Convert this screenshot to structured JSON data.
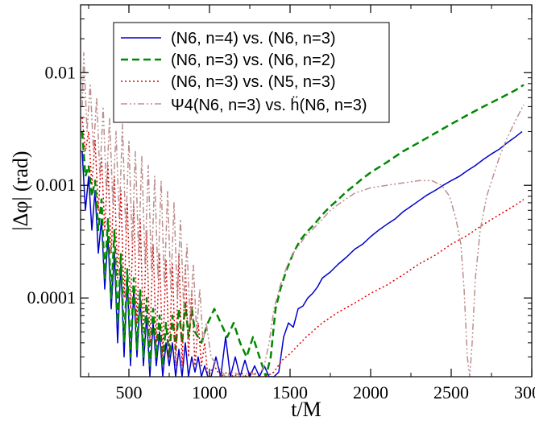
{
  "chart_data": {
    "type": "line",
    "xlabel": "t/M",
    "ylabel": "|Δφ|  (rad)",
    "xlim": [
      200,
      3000
    ],
    "ylim": [
      2e-05,
      0.04
    ],
    "yscale": "log",
    "grid": false,
    "legend_position": "top-center",
    "x_ticks": [
      500,
      1000,
      1500,
      2000,
      2500,
      3000
    ],
    "x_tick_labels": [
      "500",
      "1000",
      "1500",
      "2000",
      "2500",
      "3000"
    ],
    "y_ticks": [
      0.0001,
      0.001,
      0.01
    ],
    "y_tick_labels": [
      "0.0001",
      "0.001",
      "0.01"
    ],
    "series": [
      {
        "name": "(N6, n=4) vs. (N6, n=3)",
        "color": "#0000cc",
        "style": "solid",
        "x": [
          210,
          230,
          250,
          270,
          290,
          310,
          330,
          350,
          370,
          390,
          410,
          430,
          450,
          470,
          490,
          510,
          530,
          550,
          570,
          590,
          610,
          630,
          650,
          670,
          690,
          710,
          730,
          750,
          770,
          790,
          810,
          830,
          850,
          870,
          890,
          910,
          930,
          950,
          970,
          990,
          1010,
          1040,
          1070,
          1100,
          1130,
          1160,
          1190,
          1220,
          1250,
          1280,
          1310,
          1340,
          1370,
          1400,
          1430,
          1460,
          1490,
          1520,
          1550,
          1580,
          1610,
          1640,
          1670,
          1700,
          1750,
          1800,
          1850,
          1900,
          1950,
          2000,
          2050,
          2100,
          2150,
          2200,
          2250,
          2300,
          2350,
          2400,
          2450,
          2500,
          2550,
          2600,
          2650,
          2700,
          2750,
          2800,
          2850,
          2900,
          2940
        ],
        "values": [
          0.002,
          0.0006,
          0.0012,
          0.0004,
          0.0009,
          0.00025,
          0.0005,
          0.00012,
          0.00035,
          8e-05,
          0.00025,
          4e-05,
          0.0002,
          3e-05,
          0.00015,
          2.5e-05,
          0.00012,
          3e-05,
          0.0001,
          2.5e-05,
          7e-05,
          2e-05,
          6e-05,
          2.5e-05,
          5e-05,
          2e-05,
          4e-05,
          2.5e-05,
          4e-05,
          2e-05,
          3.5e-05,
          2e-05,
          4e-05,
          2e-05,
          3e-05,
          2.2e-05,
          3e-05,
          2e-05,
          2.5e-05,
          2e-05,
          2e-05,
          3e-05,
          2e-05,
          4.5e-05,
          2e-05,
          3e-05,
          2e-05,
          2.8e-05,
          2e-05,
          2.5e-05,
          2e-05,
          2.5e-05,
          2e-05,
          2e-05,
          2.2e-05,
          4.5e-05,
          6e-05,
          5.5e-05,
          8e-05,
          8.5e-05,
          0.0001,
          0.00011,
          0.000125,
          0.00015,
          0.00017,
          0.0002,
          0.00023,
          0.00027,
          0.0003,
          0.00035,
          0.0004,
          0.00045,
          0.0005,
          0.00058,
          0.00065,
          0.00073,
          0.00082,
          0.0009,
          0.001,
          0.0011,
          0.0012,
          0.00135,
          0.0015,
          0.0017,
          0.0019,
          0.0021,
          0.0024,
          0.0027,
          0.003
        ]
      },
      {
        "name": "(N6, n=3) vs. (N6, n=2)",
        "color": "#008800",
        "style": "dashed",
        "x": [
          210,
          230,
          250,
          270,
          290,
          310,
          330,
          350,
          370,
          390,
          410,
          430,
          450,
          470,
          490,
          510,
          530,
          550,
          570,
          590,
          610,
          630,
          650,
          670,
          690,
          710,
          730,
          750,
          770,
          790,
          810,
          830,
          850,
          870,
          890,
          910,
          950,
          990,
          1030,
          1070,
          1110,
          1150,
          1190,
          1230,
          1270,
          1310,
          1350,
          1380,
          1410,
          1440,
          1480,
          1520,
          1560,
          1600,
          1650,
          1700,
          1750,
          1800,
          1850,
          1900,
          1950,
          2000,
          2100,
          2200,
          2300,
          2400,
          2500,
          2600,
          2700,
          2800,
          2900,
          2950
        ],
        "values": [
          0.003,
          0.0012,
          0.0015,
          0.0008,
          0.0011,
          0.0004,
          0.00075,
          0.00015,
          0.0005,
          0.0001,
          0.0004,
          6e-05,
          0.00025,
          4e-05,
          0.00018,
          3e-05,
          0.00015,
          3.5e-05,
          0.00012,
          3e-05,
          0.0001,
          2.5e-05,
          8e-05,
          3e-05,
          7e-05,
          2.5e-05,
          6e-05,
          3e-05,
          7e-05,
          3.5e-05,
          8e-05,
          4e-05,
          9e-05,
          4.5e-05,
          8e-05,
          5e-05,
          4e-05,
          6e-05,
          8e-05,
          6e-05,
          4.5e-05,
          6e-05,
          4e-05,
          3e-05,
          4.5e-05,
          3e-05,
          2e-05,
          3e-05,
          8e-05,
          0.00012,
          0.00018,
          0.00025,
          0.00032,
          0.00038,
          0.00045,
          0.00055,
          0.00065,
          0.00075,
          0.00088,
          0.001,
          0.00115,
          0.0013,
          0.0016,
          0.002,
          0.0024,
          0.0029,
          0.0035,
          0.0042,
          0.005,
          0.0059,
          0.007,
          0.0078
        ]
      },
      {
        "name": "(N6, n=3) vs. (N5, n=3)",
        "color": "#dd0000",
        "style": "dotted",
        "x": [
          210,
          230,
          250,
          270,
          290,
          310,
          330,
          350,
          370,
          390,
          410,
          430,
          450,
          470,
          490,
          510,
          530,
          550,
          570,
          590,
          610,
          630,
          650,
          670,
          690,
          710,
          730,
          750,
          770,
          790,
          810,
          830,
          850,
          870,
          890,
          910,
          930,
          950,
          970,
          990,
          1030,
          1070,
          1110,
          1150,
          1190,
          1230,
          1270,
          1310,
          1350,
          1400,
          1450,
          1500,
          1550,
          1600,
          1650,
          1700,
          1800,
          1900,
          2000,
          2100,
          2200,
          2300,
          2400,
          2500,
          2600,
          2700,
          2800,
          2900,
          2950
        ],
        "values": [
          0.004,
          0.002,
          0.003,
          0.001,
          0.0025,
          0.0006,
          0.0018,
          0.0004,
          0.0015,
          0.00025,
          0.0012,
          0.00015,
          0.0009,
          0.0001,
          0.0007,
          8e-05,
          0.00065,
          6e-05,
          0.0005,
          5e-05,
          0.0004,
          4e-05,
          0.0003,
          4e-05,
          0.00025,
          3e-05,
          0.00022,
          3e-05,
          0.0002,
          2.5e-05,
          0.00025,
          2.5e-05,
          0.0002,
          3e-05,
          0.00012,
          2.5e-05,
          6e-05,
          2.5e-05,
          4e-05,
          2e-05,
          2.5e-05,
          2e-05,
          2.2e-05,
          2e-05,
          2.2e-05,
          2e-05,
          2.2e-05,
          2e-05,
          2e-05,
          2.2e-05,
          2.8e-05,
          3.2e-05,
          3.8e-05,
          4.5e-05,
          5.2e-05,
          6e-05,
          7.5e-05,
          9e-05,
          0.00011,
          0.00013,
          0.00016,
          0.0002,
          0.00024,
          0.0003,
          0.00036,
          0.00045,
          0.00055,
          0.00067,
          0.00075
        ]
      },
      {
        "name": "Ψ4(N6, n=3) vs. ḧ(N6, n=3)",
        "color": "#bc8f8f",
        "style": "dash-dot-dot",
        "x": [
          210,
          220,
          240,
          260,
          280,
          300,
          320,
          340,
          360,
          380,
          400,
          420,
          440,
          460,
          480,
          500,
          520,
          540,
          560,
          580,
          600,
          620,
          640,
          660,
          680,
          700,
          720,
          740,
          760,
          780,
          800,
          820,
          840,
          860,
          880,
          900,
          920,
          940,
          960,
          980,
          1010,
          1050,
          1100,
          1150,
          1200,
          1250,
          1300,
          1340,
          1370,
          1400,
          1440,
          1480,
          1520,
          1560,
          1600,
          1650,
          1700,
          1750,
          1800,
          1850,
          1900,
          1950,
          2000,
          2100,
          2200,
          2300,
          2380,
          2440,
          2490,
          2530,
          2560,
          2580,
          2600,
          2615,
          2630,
          2650,
          2680,
          2720,
          2760,
          2800,
          2840,
          2880,
          2920,
          2950
        ],
        "values": [
          0.005,
          0.015,
          0.003,
          0.008,
          0.002,
          0.006,
          0.0012,
          0.005,
          0.0009,
          0.004,
          0.0007,
          0.003,
          0.0005,
          0.0035,
          0.0004,
          0.0025,
          0.0003,
          0.002,
          0.00025,
          0.0018,
          0.0002,
          0.0015,
          0.00018,
          0.0012,
          0.00015,
          0.0011,
          0.00013,
          0.0009,
          0.00012,
          0.0007,
          0.0001,
          0.0005,
          8e-05,
          0.0003,
          6e-05,
          0.0002,
          5e-05,
          0.00012,
          4e-05,
          6e-05,
          3e-05,
          2.5e-05,
          2e-05,
          2.2e-05,
          2e-05,
          2.2e-05,
          2e-05,
          2.5e-05,
          4e-05,
          8e-05,
          0.00013,
          0.00019,
          0.00025,
          0.0003,
          0.00036,
          0.00042,
          0.0005,
          0.0006,
          0.00068,
          0.00076,
          0.00085,
          0.0009,
          0.00095,
          0.001,
          0.00105,
          0.0011,
          0.0011,
          0.001,
          0.0008,
          0.0005,
          0.0003,
          0.00012,
          3e-05,
          2e-05,
          4e-05,
          0.00015,
          0.0004,
          0.0008,
          0.0012,
          0.0018,
          0.0025,
          0.0033,
          0.0043,
          0.0052
        ]
      }
    ]
  }
}
